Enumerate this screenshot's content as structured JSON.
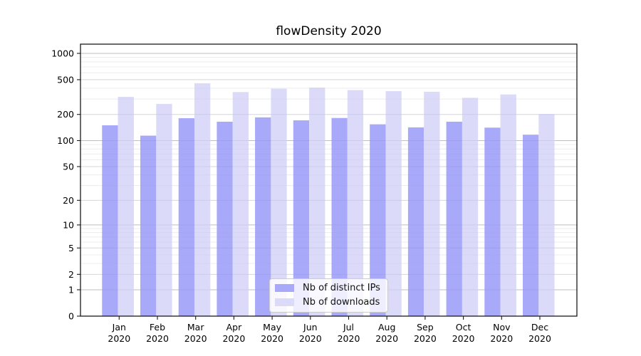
{
  "chart_data": {
    "type": "bar",
    "title": "flowDensity 2020",
    "categories": [
      "Jan 2020",
      "Feb 2020",
      "Mar 2020",
      "Apr 2020",
      "May 2020",
      "Jun 2020",
      "Jul 2020",
      "Aug 2020",
      "Sep 2020",
      "Oct 2020",
      "Nov 2020",
      "Dec 2020"
    ],
    "series": [
      {
        "name": "Nb of distinct IPs",
        "color": "#a9a9fa",
        "values": [
          150,
          114,
          181,
          165,
          185,
          171,
          182,
          154,
          142,
          165,
          141,
          117
        ]
      },
      {
        "name": "Nb of downloads",
        "color": "#dbdbf9",
        "values": [
          318,
          264,
          455,
          361,
          394,
          406,
          380,
          370,
          364,
          310,
          339,
          202
        ]
      }
    ],
    "yticks": [
      0,
      1,
      2,
      5,
      10,
      20,
      50,
      100,
      200,
      500,
      1000
    ],
    "scale": "symlog log10(1+v)",
    "ylim": [
      0,
      1275
    ],
    "xlabel": "",
    "ylabel": "",
    "grid": true,
    "legend_position": "lower center",
    "grid_decade_color": "#cccccc",
    "grid_major_color": "#e9e9e9",
    "grid_minor_color": "#f4f4f4",
    "axis_color": "#1a1a1a"
  }
}
